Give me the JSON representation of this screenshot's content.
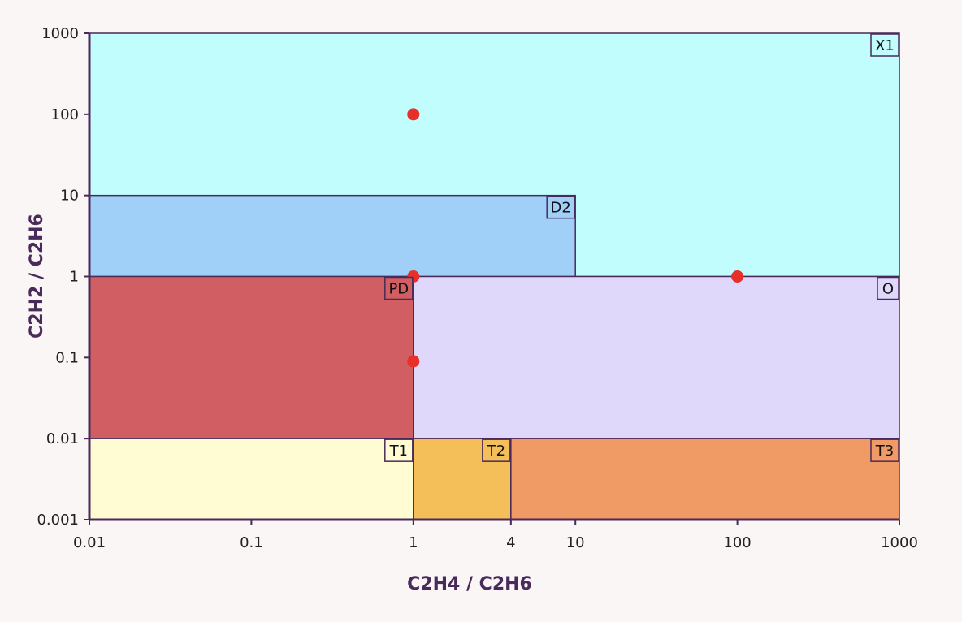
{
  "chart_data": {
    "type": "scatter",
    "title": "",
    "xlabel": "C2H4 / C2H6",
    "ylabel": "C2H2 / C2H6",
    "x_scale": "log",
    "y_scale": "log",
    "xlim": [
      0.01,
      1000
    ],
    "ylim": [
      0.001,
      1000
    ],
    "x_ticks": [
      {
        "value": 0.01,
        "label": "0.01"
      },
      {
        "value": 0.1,
        "label": "0.1"
      },
      {
        "value": 1,
        "label": "1"
      },
      {
        "value": 4,
        "label": "4"
      },
      {
        "value": 10,
        "label": "10"
      },
      {
        "value": 100,
        "label": "100"
      },
      {
        "value": 1000,
        "label": "1000"
      }
    ],
    "y_ticks": [
      {
        "value": 0.001,
        "label": "0.001"
      },
      {
        "value": 0.01,
        "label": "0.01"
      },
      {
        "value": 0.1,
        "label": "0.1"
      },
      {
        "value": 1,
        "label": "1"
      },
      {
        "value": 10,
        "label": "10"
      },
      {
        "value": 100,
        "label": "100"
      },
      {
        "value": 1000,
        "label": "1000"
      }
    ],
    "grid": false,
    "zones": [
      {
        "label": "X1",
        "x": [
          0.01,
          1000
        ],
        "y": [
          1,
          1000
        ],
        "color": "#c2fdfd",
        "label_anchor": "top-right"
      },
      {
        "label": "D2",
        "x": [
          0.01,
          10
        ],
        "y": [
          1,
          10
        ],
        "color": "#a0cff8",
        "label_anchor": "top-right"
      },
      {
        "label": "PD",
        "x": [
          0.01,
          1
        ],
        "y": [
          0.01,
          1
        ],
        "color": "#d05e63",
        "label_anchor": "top-right"
      },
      {
        "label": "O",
        "x": [
          1,
          1000
        ],
        "y": [
          0.01,
          1
        ],
        "color": "#e0d8fb",
        "label_anchor": "top-right"
      },
      {
        "label": "T1",
        "x": [
          0.01,
          1
        ],
        "y": [
          0.001,
          0.01
        ],
        "color": "#fffbd2",
        "label_anchor": "top-right"
      },
      {
        "label": "T2",
        "x": [
          1,
          4
        ],
        "y": [
          0.001,
          0.01
        ],
        "color": "#f4bf58",
        "label_anchor": "top-right"
      },
      {
        "label": "T3",
        "x": [
          4,
          1000
        ],
        "y": [
          0.001,
          0.01
        ],
        "color": "#f09b65",
        "label_anchor": "top-right"
      }
    ],
    "points": [
      {
        "x": 1,
        "y": 100
      },
      {
        "x": 1,
        "y": 1
      },
      {
        "x": 1,
        "y": 0.09
      },
      {
        "x": 100,
        "y": 1
      }
    ],
    "point_color": "#e8302a",
    "axis_color": "#4a2a5a"
  }
}
